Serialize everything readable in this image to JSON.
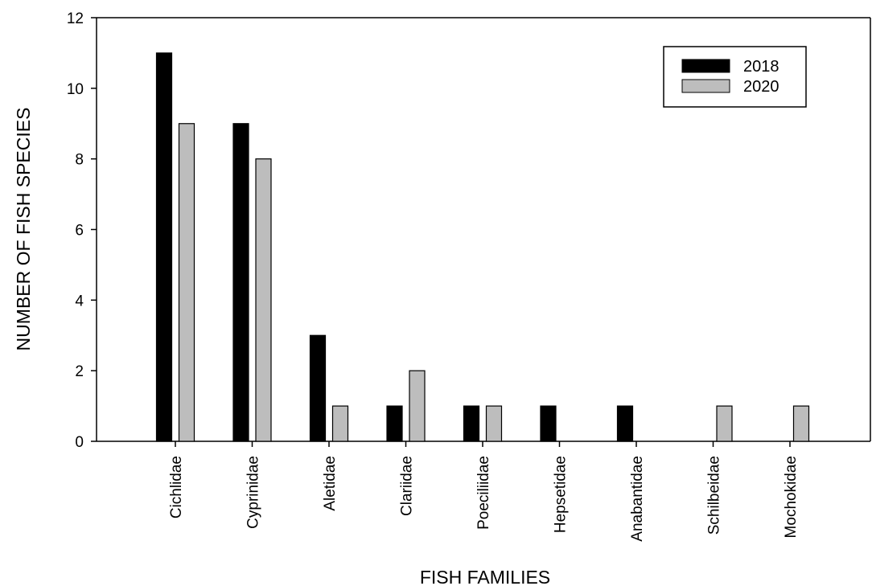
{
  "chart_data": {
    "type": "bar",
    "categories": [
      "Cichlidae",
      "Cyprinidae",
      "Aletidae",
      "Clariidae",
      "Poeciliidae",
      "Hepsetidae",
      "Anabantidae",
      "Schilbeidae",
      "Mochokidae"
    ],
    "series": [
      {
        "name": "2018",
        "color": "#000000",
        "values": [
          11,
          9,
          3,
          1,
          1,
          1,
          1,
          0,
          0
        ]
      },
      {
        "name": "2020",
        "color": "#bdbdbd",
        "values": [
          9,
          8,
          1,
          2,
          1,
          0,
          0,
          1,
          1
        ]
      }
    ],
    "title": "",
    "xlabel": "FISH FAMILIES",
    "ylabel": "NUMBER OF FISH SPECIES",
    "ylim": [
      0,
      12
    ],
    "yticks": [
      "0",
      "2",
      "4",
      "6",
      "8",
      "10",
      "12"
    ],
    "grid": false,
    "legend_position": "top-right"
  }
}
